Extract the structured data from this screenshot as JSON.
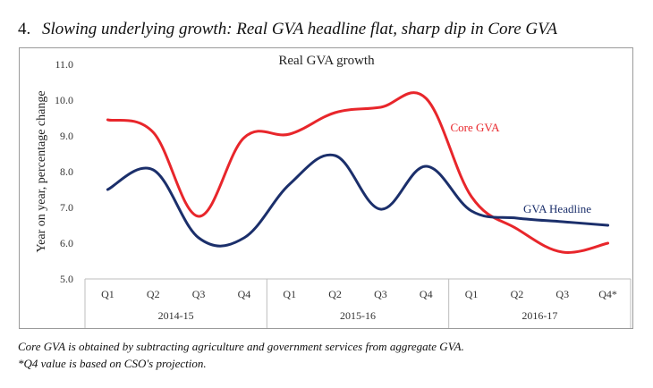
{
  "heading": {
    "number": "4.",
    "text": "Slowing underlying growth: Real GVA headline flat, sharp dip in Core GVA"
  },
  "notes": [
    "Core GVA is obtained by subtracting agriculture and government services from aggregate GVA.",
    "*Q4 value is based on CSO's projection."
  ],
  "chart_data": {
    "type": "line",
    "title": "Real GVA growth",
    "ylabel": "Year on year, percentage change",
    "xlabel": "",
    "ylim": [
      5.0,
      11.0
    ],
    "yticks": [
      "5.0",
      "6.0",
      "7.0",
      "8.0",
      "9.0",
      "10.0",
      "11.0"
    ],
    "categories": [
      "Q1",
      "Q2",
      "Q3",
      "Q4",
      "Q1",
      "Q2",
      "Q3",
      "Q4",
      "Q1",
      "Q2",
      "Q3",
      "Q4*"
    ],
    "groups": [
      {
        "label": "2014-15",
        "count": 4
      },
      {
        "label": "2015-16",
        "count": 4
      },
      {
        "label": "2016-17",
        "count": 4
      }
    ],
    "grid": false,
    "series": [
      {
        "name": "Core GVA",
        "color": "#e8262b",
        "values": [
          9.45,
          9.1,
          6.75,
          8.95,
          9.05,
          9.65,
          9.8,
          10.05,
          7.3,
          6.4,
          5.75,
          6.0
        ]
      },
      {
        "name": "GVA Headline",
        "color": "#1b2f6b",
        "values": [
          7.5,
          8.05,
          6.15,
          6.15,
          7.65,
          8.45,
          6.95,
          8.15,
          6.9,
          6.7,
          6.6,
          6.5
        ]
      }
    ]
  }
}
